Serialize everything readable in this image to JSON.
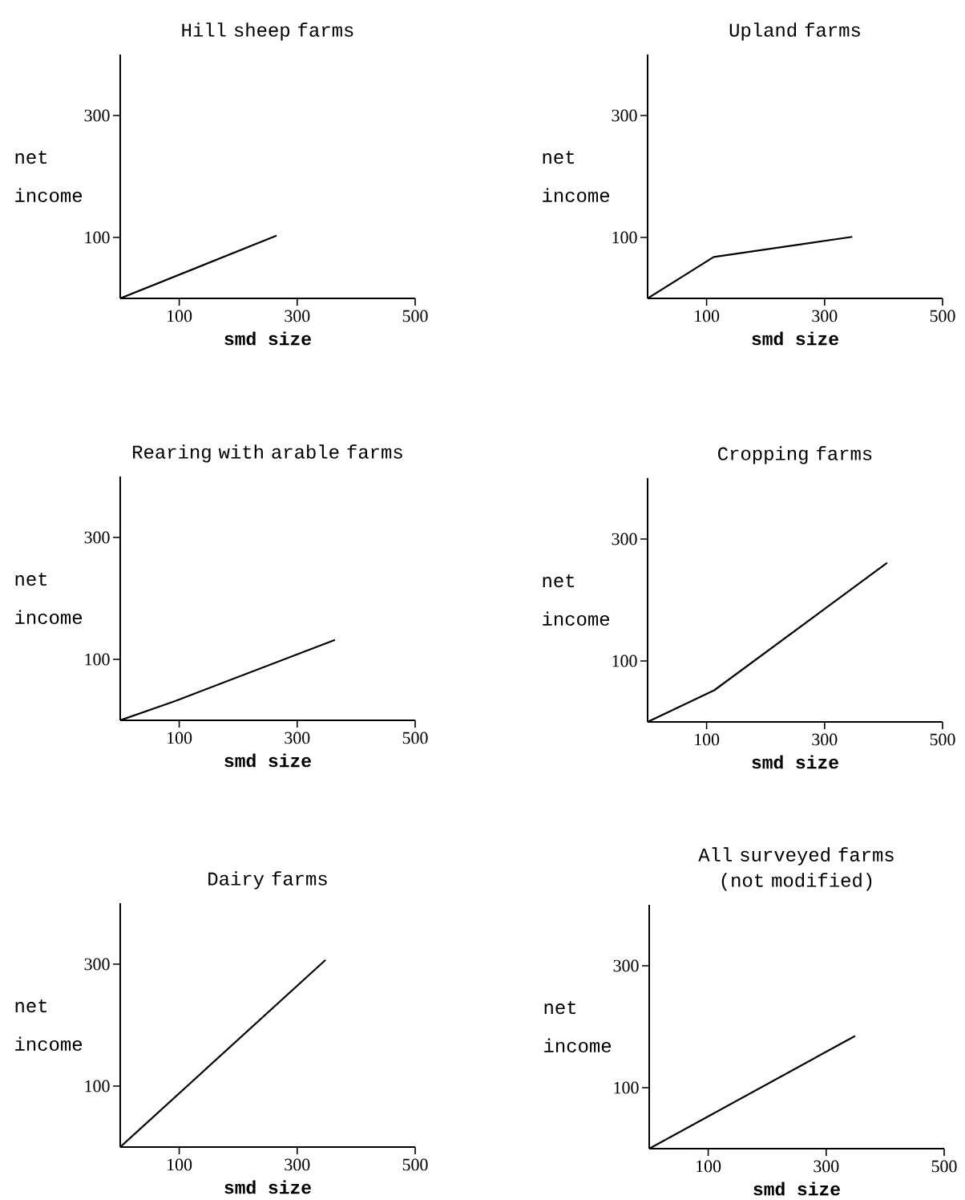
{
  "chart_data": [
    {
      "type": "line",
      "title": "Hill sheep farms",
      "xlabel": "smd size",
      "ylabel": "net income",
      "x": [
        0,
        265
      ],
      "values": [
        0,
        103
      ],
      "color": "#000000",
      "xlim": [
        0,
        500
      ],
      "ylim": [
        0,
        400
      ],
      "xticks": [
        100,
        300,
        500
      ],
      "yticks": [
        100,
        300
      ]
    },
    {
      "type": "line",
      "title": "Upland farms",
      "xlabel": "smd size",
      "ylabel": "net income",
      "x": [
        0,
        112,
        347
      ],
      "values": [
        0,
        68,
        101
      ],
      "color": "#000000",
      "xlim": [
        0,
        500
      ],
      "ylim": [
        0,
        400
      ],
      "xticks": [
        100,
        300,
        500
      ],
      "yticks": [
        100,
        300
      ]
    },
    {
      "type": "line",
      "title": "Rearing with arable farms",
      "xlabel": "smd size",
      "ylabel": "net income",
      "x": [
        0,
        94,
        364
      ],
      "values": [
        0,
        32,
        132
      ],
      "color": "#000000",
      "xlim": [
        0,
        500
      ],
      "ylim": [
        0,
        400
      ],
      "xticks": [
        100,
        300,
        500
      ],
      "yticks": [
        100,
        300
      ]
    },
    {
      "type": "line",
      "title": "Cropping farms",
      "xlabel": "smd size",
      "ylabel": "net income",
      "x": [
        0,
        113,
        406
      ],
      "values": [
        0,
        52,
        261
      ],
      "color": "#000000",
      "xlim": [
        0,
        500
      ],
      "ylim": [
        0,
        400
      ],
      "xticks": [
        100,
        300,
        500
      ],
      "yticks": [
        100,
        300
      ]
    },
    {
      "type": "line",
      "title": "Dairy farms",
      "xlabel": "smd size",
      "ylabel": "net income",
      "x": [
        0,
        348
      ],
      "values": [
        0,
        307
      ],
      "color": "#000000",
      "xlim": [
        0,
        500
      ],
      "ylim": [
        0,
        400
      ],
      "xticks": [
        100,
        300,
        500
      ],
      "yticks": [
        100,
        300
      ]
    },
    {
      "type": "line",
      "title": "All surveyed farms (not modified)",
      "xlabel": "smd size",
      "ylabel": "net income",
      "x": [
        0,
        349
      ],
      "values": [
        0,
        185
      ],
      "color": "#000000",
      "xlim": [
        0,
        500
      ],
      "ylim": [
        0,
        400
      ],
      "xticks": [
        100,
        300,
        500
      ],
      "yticks": [
        100,
        300
      ]
    }
  ]
}
